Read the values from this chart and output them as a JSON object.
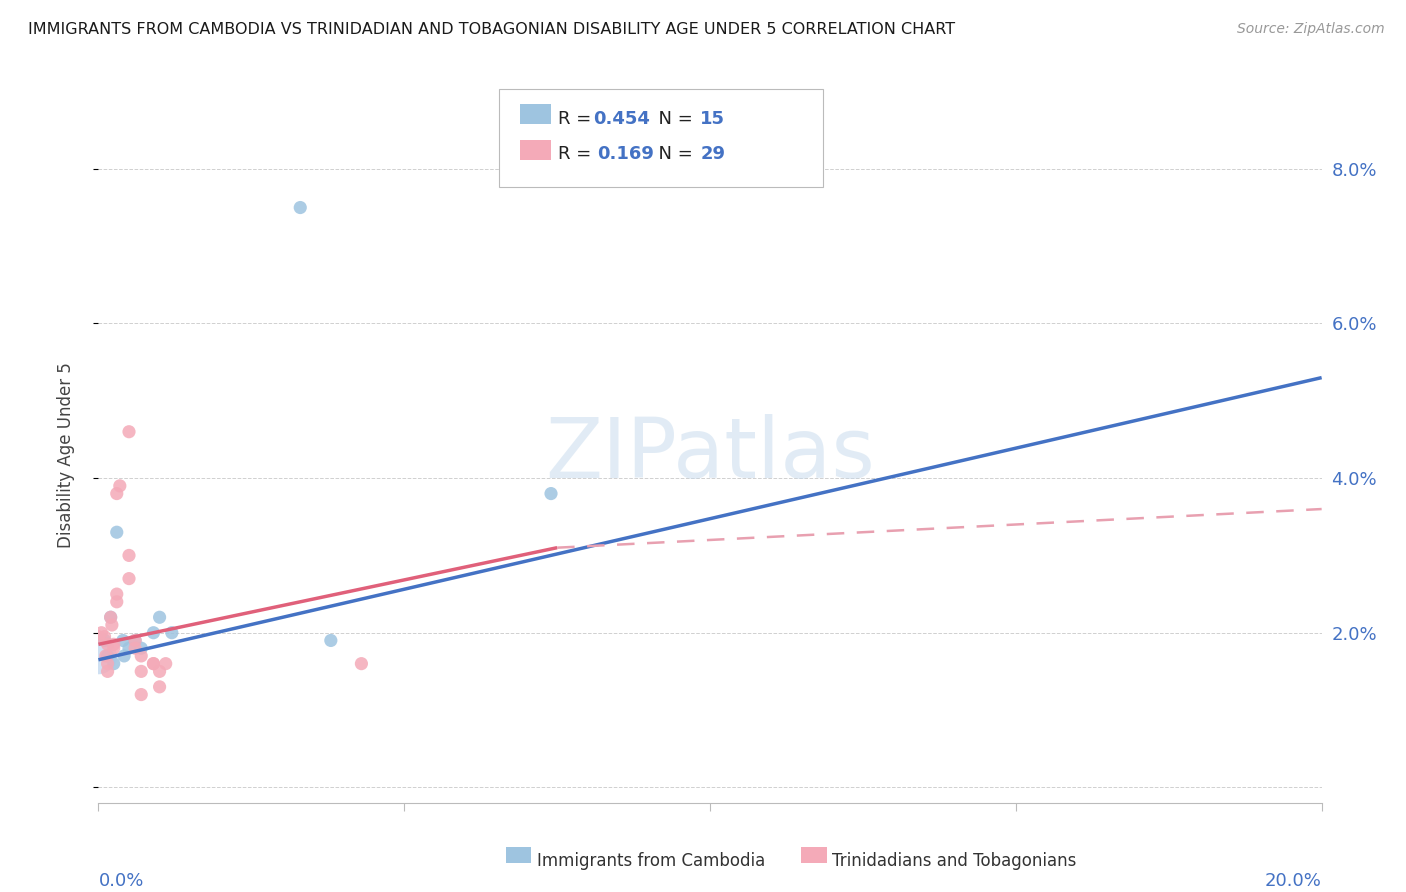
{
  "title": "IMMIGRANTS FROM CAMBODIA VS TRINIDADIAN AND TOBAGONIAN DISABILITY AGE UNDER 5 CORRELATION CHART",
  "source": "Source: ZipAtlas.com",
  "ylabel": "Disability Age Under 5",
  "ytick_values": [
    0.0,
    0.02,
    0.04,
    0.06,
    0.08
  ],
  "ytick_labels": [
    "",
    "2.0%",
    "4.0%",
    "6.0%",
    "8.0%"
  ],
  "xlim": [
    0.0,
    0.2
  ],
  "ylim": [
    -0.002,
    0.088
  ],
  "xtick_values": [
    0.0,
    0.05,
    0.1,
    0.15,
    0.2
  ],
  "cambodia_points": [
    [
      0.001,
      0.019
    ],
    [
      0.0015,
      0.017
    ],
    [
      0.002,
      0.022
    ],
    [
      0.0025,
      0.016
    ],
    [
      0.003,
      0.033
    ],
    [
      0.004,
      0.019
    ],
    [
      0.0042,
      0.017
    ],
    [
      0.005,
      0.018
    ],
    [
      0.006,
      0.019
    ],
    [
      0.007,
      0.018
    ],
    [
      0.009,
      0.02
    ],
    [
      0.01,
      0.022
    ],
    [
      0.012,
      0.02
    ],
    [
      0.033,
      0.075
    ],
    [
      0.074,
      0.038
    ],
    [
      0.038,
      0.019
    ]
  ],
  "cambodia_large_point": [
    0.0,
    0.017
  ],
  "trinidadian_points": [
    [
      0.0,
      0.0195
    ],
    [
      0.0005,
      0.02
    ],
    [
      0.001,
      0.0195
    ],
    [
      0.0012,
      0.017
    ],
    [
      0.0015,
      0.0185
    ],
    [
      0.0015,
      0.016
    ],
    [
      0.0015,
      0.015
    ],
    [
      0.002,
      0.022
    ],
    [
      0.0022,
      0.021
    ],
    [
      0.0025,
      0.0185
    ],
    [
      0.0025,
      0.018
    ],
    [
      0.003,
      0.025
    ],
    [
      0.003,
      0.024
    ],
    [
      0.003,
      0.038
    ],
    [
      0.0035,
      0.039
    ],
    [
      0.005,
      0.046
    ],
    [
      0.005,
      0.03
    ],
    [
      0.005,
      0.027
    ],
    [
      0.006,
      0.019
    ],
    [
      0.006,
      0.018
    ],
    [
      0.007,
      0.017
    ],
    [
      0.007,
      0.015
    ],
    [
      0.009,
      0.016
    ],
    [
      0.009,
      0.016
    ],
    [
      0.01,
      0.015
    ],
    [
      0.011,
      0.016
    ],
    [
      0.01,
      0.013
    ],
    [
      0.007,
      0.012
    ],
    [
      0.043,
      0.016
    ]
  ],
  "blue_color": "#9ec4e0",
  "pink_color": "#f4aab8",
  "blue_large_color": "#a8c8e8",
  "blue_line_color": "#4472c4",
  "pink_line_color": "#e0607a",
  "pink_dashed_color": "#e8a0b0",
  "watermark": "ZIPatlas",
  "title_color": "#1a1a1a",
  "source_color": "#999999",
  "axis_color": "#4472c4",
  "grid_color": "#d0d0d0",
  "cam_line_x0": 0.0,
  "cam_line_y0": 0.0165,
  "cam_line_x1": 0.2,
  "cam_line_y1": 0.053,
  "tri_line_x0": 0.0,
  "tri_line_y0": 0.0185,
  "tri_line_xsolid": 0.075,
  "tri_line_ysolid": 0.031,
  "tri_line_x1": 0.2,
  "tri_line_y1": 0.036
}
